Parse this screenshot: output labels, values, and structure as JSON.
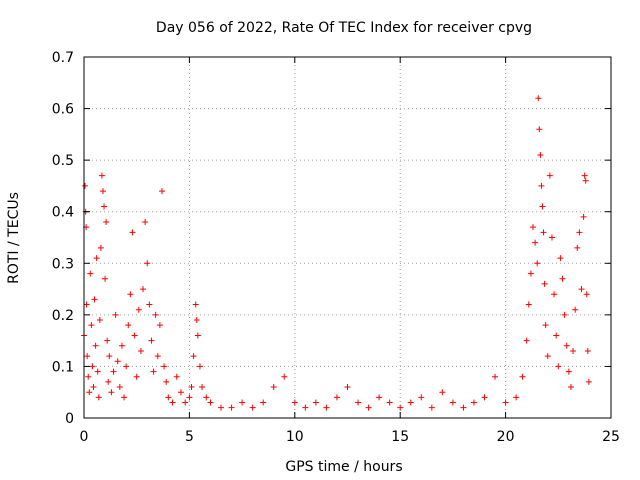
{
  "chart_data": {
    "type": "scatter",
    "title": "Day 056 of 2022, Rate Of TEC Index for receiver cpvg",
    "xlabel": "GPS time / hours",
    "ylabel": "ROTI / TECUs",
    "xlim": [
      0,
      25
    ],
    "ylim": [
      0,
      0.7
    ],
    "xticks": [
      0,
      5,
      10,
      15,
      20,
      25
    ],
    "yticks": [
      0,
      0.1,
      0.2,
      0.3,
      0.4,
      0.5,
      0.6,
      0.7
    ],
    "xtick_labels": [
      "0",
      "5",
      "10",
      "15",
      "20",
      "25"
    ],
    "ytick_labels": [
      "0",
      "0.1",
      "0.2",
      "0.3",
      "0.4",
      "0.5",
      "0.6",
      "0.7"
    ],
    "grid": true,
    "marker": "+",
    "color": "#ff0000",
    "series": [
      {
        "name": "ROTI",
        "points": [
          [
            0.0,
            0.16
          ],
          [
            0.05,
            0.45
          ],
          [
            0.08,
            0.4
          ],
          [
            0.1,
            0.37
          ],
          [
            0.12,
            0.22
          ],
          [
            0.15,
            0.12
          ],
          [
            0.2,
            0.08
          ],
          [
            0.25,
            0.05
          ],
          [
            0.3,
            0.28
          ],
          [
            0.35,
            0.18
          ],
          [
            0.4,
            0.1
          ],
          [
            0.45,
            0.06
          ],
          [
            0.5,
            0.23
          ],
          [
            0.55,
            0.14
          ],
          [
            0.6,
            0.31
          ],
          [
            0.65,
            0.09
          ],
          [
            0.7,
            0.04
          ],
          [
            0.75,
            0.19
          ],
          [
            0.8,
            0.33
          ],
          [
            0.85,
            0.47
          ],
          [
            0.9,
            0.44
          ],
          [
            0.95,
            0.41
          ],
          [
            1.0,
            0.27
          ],
          [
            1.05,
            0.38
          ],
          [
            1.1,
            0.15
          ],
          [
            1.15,
            0.07
          ],
          [
            1.2,
            0.12
          ],
          [
            1.3,
            0.05
          ],
          [
            1.4,
            0.09
          ],
          [
            1.5,
            0.2
          ],
          [
            1.6,
            0.11
          ],
          [
            1.7,
            0.06
          ],
          [
            1.8,
            0.14
          ],
          [
            1.9,
            0.04
          ],
          [
            2.0,
            0.1
          ],
          [
            2.1,
            0.18
          ],
          [
            2.2,
            0.24
          ],
          [
            2.3,
            0.36
          ],
          [
            2.4,
            0.16
          ],
          [
            2.5,
            0.08
          ],
          [
            2.6,
            0.21
          ],
          [
            2.7,
            0.13
          ],
          [
            2.8,
            0.25
          ],
          [
            2.9,
            0.38
          ],
          [
            3.0,
            0.3
          ],
          [
            3.1,
            0.22
          ],
          [
            3.2,
            0.15
          ],
          [
            3.3,
            0.09
          ],
          [
            3.4,
            0.2
          ],
          [
            3.5,
            0.12
          ],
          [
            3.6,
            0.18
          ],
          [
            3.7,
            0.44
          ],
          [
            3.8,
            0.1
          ],
          [
            3.9,
            0.07
          ],
          [
            4.0,
            0.04
          ],
          [
            4.2,
            0.03
          ],
          [
            4.4,
            0.08
          ],
          [
            4.6,
            0.05
          ],
          [
            4.8,
            0.03
          ],
          [
            5.0,
            0.04
          ],
          [
            5.1,
            0.06
          ],
          [
            5.2,
            0.12
          ],
          [
            5.3,
            0.22
          ],
          [
            5.35,
            0.19
          ],
          [
            5.4,
            0.16
          ],
          [
            5.5,
            0.1
          ],
          [
            5.6,
            0.06
          ],
          [
            5.8,
            0.04
          ],
          [
            6.0,
            0.03
          ],
          [
            6.5,
            0.02
          ],
          [
            7.0,
            0.02
          ],
          [
            7.5,
            0.03
          ],
          [
            8.0,
            0.02
          ],
          [
            8.5,
            0.03
          ],
          [
            9.0,
            0.06
          ],
          [
            9.5,
            0.08
          ],
          [
            10.0,
            0.03
          ],
          [
            10.5,
            0.02
          ],
          [
            11.0,
            0.03
          ],
          [
            11.5,
            0.02
          ],
          [
            12.0,
            0.04
          ],
          [
            12.5,
            0.06
          ],
          [
            13.0,
            0.03
          ],
          [
            13.5,
            0.02
          ],
          [
            14.0,
            0.04
          ],
          [
            14.5,
            0.03
          ],
          [
            15.0,
            0.02
          ],
          [
            15.5,
            0.03
          ],
          [
            16.0,
            0.04
          ],
          [
            16.5,
            0.02
          ],
          [
            17.0,
            0.05
          ],
          [
            17.5,
            0.03
          ],
          [
            18.0,
            0.02
          ],
          [
            18.5,
            0.03
          ],
          [
            19.0,
            0.04
          ],
          [
            19.5,
            0.08
          ],
          [
            20.0,
            0.03
          ],
          [
            20.5,
            0.04
          ],
          [
            20.8,
            0.08
          ],
          [
            21.0,
            0.15
          ],
          [
            21.1,
            0.22
          ],
          [
            21.2,
            0.28
          ],
          [
            21.3,
            0.37
          ],
          [
            21.4,
            0.34
          ],
          [
            21.5,
            0.3
          ],
          [
            21.55,
            0.62
          ],
          [
            21.6,
            0.56
          ],
          [
            21.65,
            0.51
          ],
          [
            21.7,
            0.45
          ],
          [
            21.75,
            0.41
          ],
          [
            21.8,
            0.36
          ],
          [
            21.85,
            0.26
          ],
          [
            21.9,
            0.18
          ],
          [
            22.0,
            0.12
          ],
          [
            22.1,
            0.47
          ],
          [
            22.2,
            0.35
          ],
          [
            22.3,
            0.24
          ],
          [
            22.4,
            0.16
          ],
          [
            22.5,
            0.1
          ],
          [
            22.6,
            0.31
          ],
          [
            22.7,
            0.27
          ],
          [
            22.8,
            0.2
          ],
          [
            22.9,
            0.14
          ],
          [
            23.0,
            0.09
          ],
          [
            23.1,
            0.06
          ],
          [
            23.2,
            0.13
          ],
          [
            23.3,
            0.21
          ],
          [
            23.4,
            0.33
          ],
          [
            23.5,
            0.36
          ],
          [
            23.6,
            0.25
          ],
          [
            23.7,
            0.39
          ],
          [
            23.75,
            0.47
          ],
          [
            23.8,
            0.46
          ],
          [
            23.85,
            0.24
          ],
          [
            23.9,
            0.13
          ],
          [
            23.95,
            0.07
          ]
        ]
      }
    ]
  }
}
